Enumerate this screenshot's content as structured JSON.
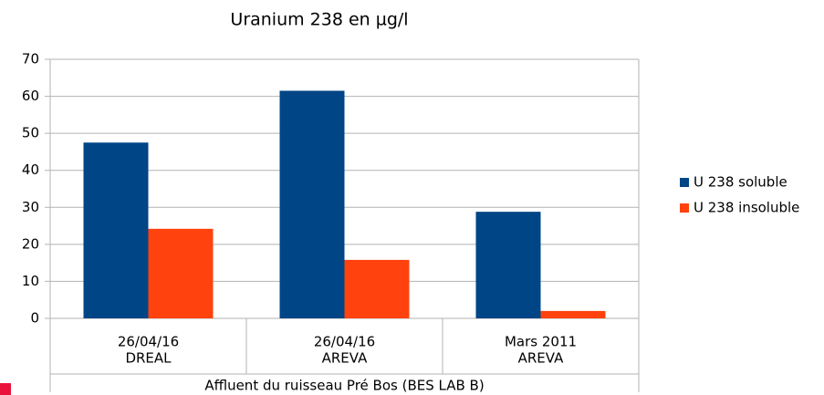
{
  "chart_data": {
    "type": "bar",
    "title": "Uranium 238 en µg/l",
    "categories": [
      [
        "26/04/16",
        "DREAL"
      ],
      [
        "26/04/16",
        "AREVA"
      ],
      [
        "Mars 2011",
        "AREVA"
      ]
    ],
    "group_label": "Affluent du ruisseau Pré Bos (BES LAB B)",
    "series": [
      {
        "name": "U 238 soluble",
        "color": "#004586",
        "values": [
          47.5,
          61.5,
          28.8
        ]
      },
      {
        "name": "U 238 insoluble",
        "color": "#ff420e",
        "values": [
          24.2,
          15.8,
          2.0
        ]
      }
    ],
    "ylim": [
      0,
      70
    ],
    "yticks": [
      0,
      10,
      20,
      30,
      40,
      50,
      60,
      70
    ],
    "grid": true,
    "legend": "right"
  }
}
